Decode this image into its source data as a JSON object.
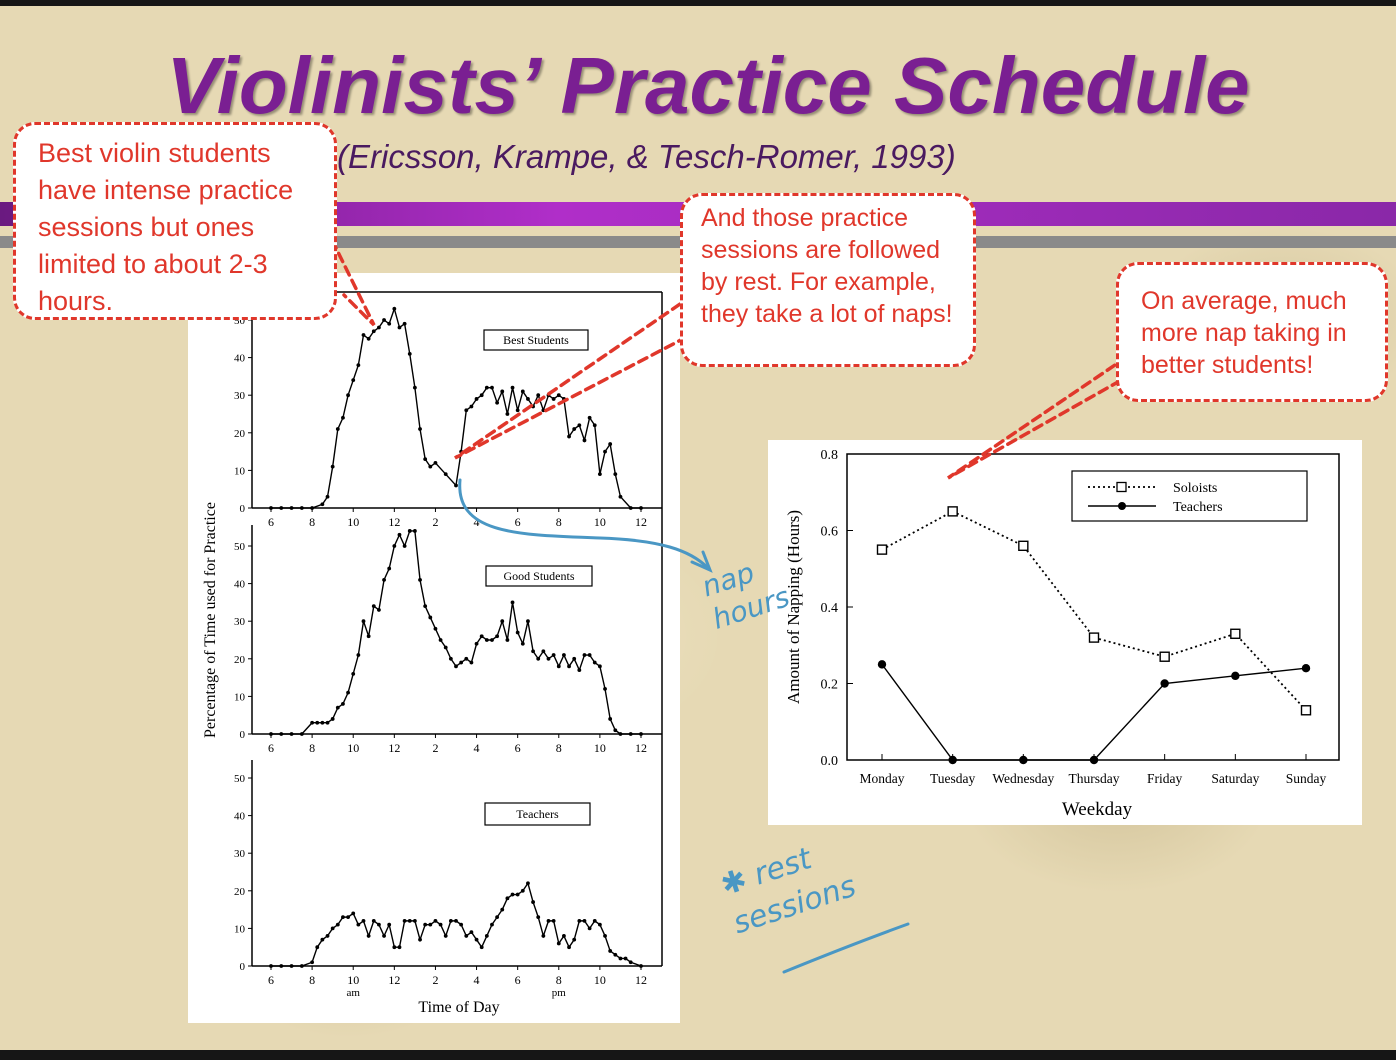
{
  "slide": {
    "title": "Violinists’ Practice Schedule",
    "subtitle": "(Ericsson, Krampe, & Tesch-Romer, 1993)",
    "colors": {
      "title": "#7a1f92",
      "callout": "#e0372b",
      "handwriting": "#4a97c4",
      "background": "#e6d9b4"
    }
  },
  "callouts": [
    {
      "text": "Best violin students have intense practice sessions but ones limited to about 2-3 hours."
    },
    {
      "text": "And those practice sessions are followed by rest. For example, they take a lot of naps!"
    },
    {
      "text": "On average, much more nap taking in better students!"
    }
  ],
  "handwriting": {
    "nap_label": "nap hours",
    "rest_label": "rest sessions",
    "star": "✱"
  },
  "chart_data": [
    {
      "type": "line",
      "panel": "left",
      "xlabel": "Time of Day",
      "ylabel": "Percentage of Time used for Practice",
      "x_ticks": [
        "6",
        "8",
        "10",
        "12",
        "2",
        "4",
        "6",
        "8",
        "10",
        "12"
      ],
      "x_ticks_hours": [
        6,
        8,
        10,
        12,
        14,
        16,
        18,
        20,
        22,
        24
      ],
      "x_sublabels": {
        "am": 10,
        "pm": 20
      },
      "y_ticks": [
        0,
        10,
        20,
        30,
        40,
        50
      ],
      "ylim": [
        0,
        55
      ],
      "xlim": [
        5.5,
        25
      ],
      "subplots": [
        {
          "name": "Best Students",
          "x": [
            6,
            6.5,
            7,
            7.5,
            8,
            8.5,
            8.75,
            9,
            9.25,
            9.5,
            9.75,
            10,
            10.25,
            10.5,
            10.75,
            11,
            11.25,
            11.5,
            11.75,
            12,
            12.25,
            12.5,
            12.75,
            13,
            13.25,
            13.5,
            13.75,
            14,
            14.5,
            15,
            15.25,
            15.5,
            15.75,
            16,
            16.25,
            16.5,
            16.75,
            17,
            17.25,
            17.5,
            17.75,
            18,
            18.25,
            18.5,
            18.75,
            19,
            19.25,
            19.5,
            19.75,
            20,
            20.25,
            20.5,
            20.75,
            21,
            21.25,
            21.5,
            21.75,
            22,
            22.25,
            22.5,
            22.75,
            23,
            23.5,
            24
          ],
          "y": [
            0,
            0,
            0,
            0,
            0,
            1,
            3,
            11,
            21,
            24,
            30,
            34,
            38,
            46,
            45,
            47,
            48,
            50,
            49,
            53,
            48,
            49,
            41,
            32,
            21,
            13,
            11,
            12,
            9,
            6,
            15,
            26,
            27,
            29,
            30,
            32,
            32,
            28,
            31,
            25,
            32,
            26,
            31,
            29,
            27,
            30,
            26,
            30,
            29,
            30,
            29,
            19,
            21,
            22,
            18,
            24,
            22,
            9,
            15,
            17,
            9,
            3,
            0,
            0
          ]
        },
        {
          "name": "Good Students",
          "x": [
            6,
            6.5,
            7,
            7.5,
            8,
            8.25,
            8.5,
            8.75,
            9,
            9.25,
            9.5,
            9.75,
            10,
            10.25,
            10.5,
            10.75,
            11,
            11.25,
            11.5,
            11.75,
            12,
            12.25,
            12.5,
            12.75,
            13,
            13.25,
            13.5,
            13.75,
            14,
            14.25,
            14.5,
            14.75,
            15,
            15.25,
            15.5,
            15.75,
            16,
            16.25,
            16.5,
            16.75,
            17,
            17.25,
            17.5,
            17.75,
            18,
            18.25,
            18.5,
            18.75,
            19,
            19.25,
            19.5,
            19.75,
            20,
            20.25,
            20.5,
            20.75,
            21,
            21.25,
            21.5,
            21.75,
            22,
            22.25,
            22.5,
            22.75,
            23,
            23.5,
            24
          ],
          "y": [
            0,
            0,
            0,
            0,
            3,
            3,
            3,
            3,
            4,
            7,
            8,
            11,
            16,
            21,
            30,
            26,
            34,
            33,
            41,
            44,
            50,
            53,
            50,
            54,
            54,
            41,
            34,
            31,
            28,
            25,
            23,
            20,
            18,
            19,
            20,
            19,
            24,
            26,
            25,
            25,
            26,
            30,
            25,
            35,
            27,
            24,
            30,
            22,
            20,
            22,
            20,
            21,
            18,
            21,
            18,
            20,
            17,
            21,
            21,
            19,
            18,
            12,
            4,
            1,
            0,
            0,
            0
          ]
        },
        {
          "name": "Teachers",
          "x": [
            6,
            6.5,
            7,
            7.5,
            8,
            8.25,
            8.5,
            8.75,
            9,
            9.25,
            9.5,
            9.75,
            10,
            10.25,
            10.5,
            10.75,
            11,
            11.25,
            11.5,
            11.75,
            12,
            12.25,
            12.5,
            12.75,
            13,
            13.25,
            13.5,
            13.75,
            14,
            14.25,
            14.5,
            14.75,
            15,
            15.25,
            15.5,
            15.75,
            16,
            16.25,
            16.5,
            16.75,
            17,
            17.25,
            17.5,
            17.75,
            18,
            18.25,
            18.5,
            18.75,
            19,
            19.25,
            19.5,
            19.75,
            20,
            20.25,
            20.5,
            20.75,
            21,
            21.25,
            21.5,
            21.75,
            22,
            22.25,
            22.5,
            22.75,
            23,
            23.25,
            23.5,
            24
          ],
          "y": [
            0,
            0,
            0,
            0,
            1,
            5,
            7,
            8,
            10,
            11,
            13,
            13,
            14,
            11,
            12,
            8,
            12,
            11,
            8,
            11,
            5,
            5,
            12,
            12,
            12,
            7,
            11,
            11,
            12,
            11,
            8,
            12,
            12,
            11,
            8,
            9,
            7,
            5,
            8,
            11,
            13,
            15,
            18,
            19,
            19,
            20,
            22,
            17,
            13,
            8,
            12,
            12,
            6,
            8,
            5,
            7,
            12,
            12,
            10,
            12,
            11,
            8,
            4,
            3,
            2,
            2,
            1,
            0
          ]
        }
      ]
    },
    {
      "type": "line",
      "panel": "right",
      "xlabel": "Weekday",
      "ylabel": "Amount of Napping (Hours)",
      "categories": [
        "Monday",
        "Tuesday",
        "Wednesday",
        "Thursday",
        "Friday",
        "Saturday",
        "Sunday"
      ],
      "y_ticks": [
        "0.0",
        "0.2",
        "0.4",
        "0.6",
        "0.8"
      ],
      "ylim": [
        0,
        0.8
      ],
      "legend": "top-right",
      "series": [
        {
          "name": "Soloists",
          "marker": "open-square",
          "style": "dotted",
          "values": [
            0.55,
            0.65,
            0.56,
            0.32,
            0.27,
            0.33,
            0.13
          ]
        },
        {
          "name": "Teachers",
          "marker": "filled-circle",
          "style": "solid",
          "values": [
            0.25,
            0.0,
            0.0,
            0.0,
            0.2,
            0.22,
            0.24
          ]
        }
      ]
    }
  ]
}
